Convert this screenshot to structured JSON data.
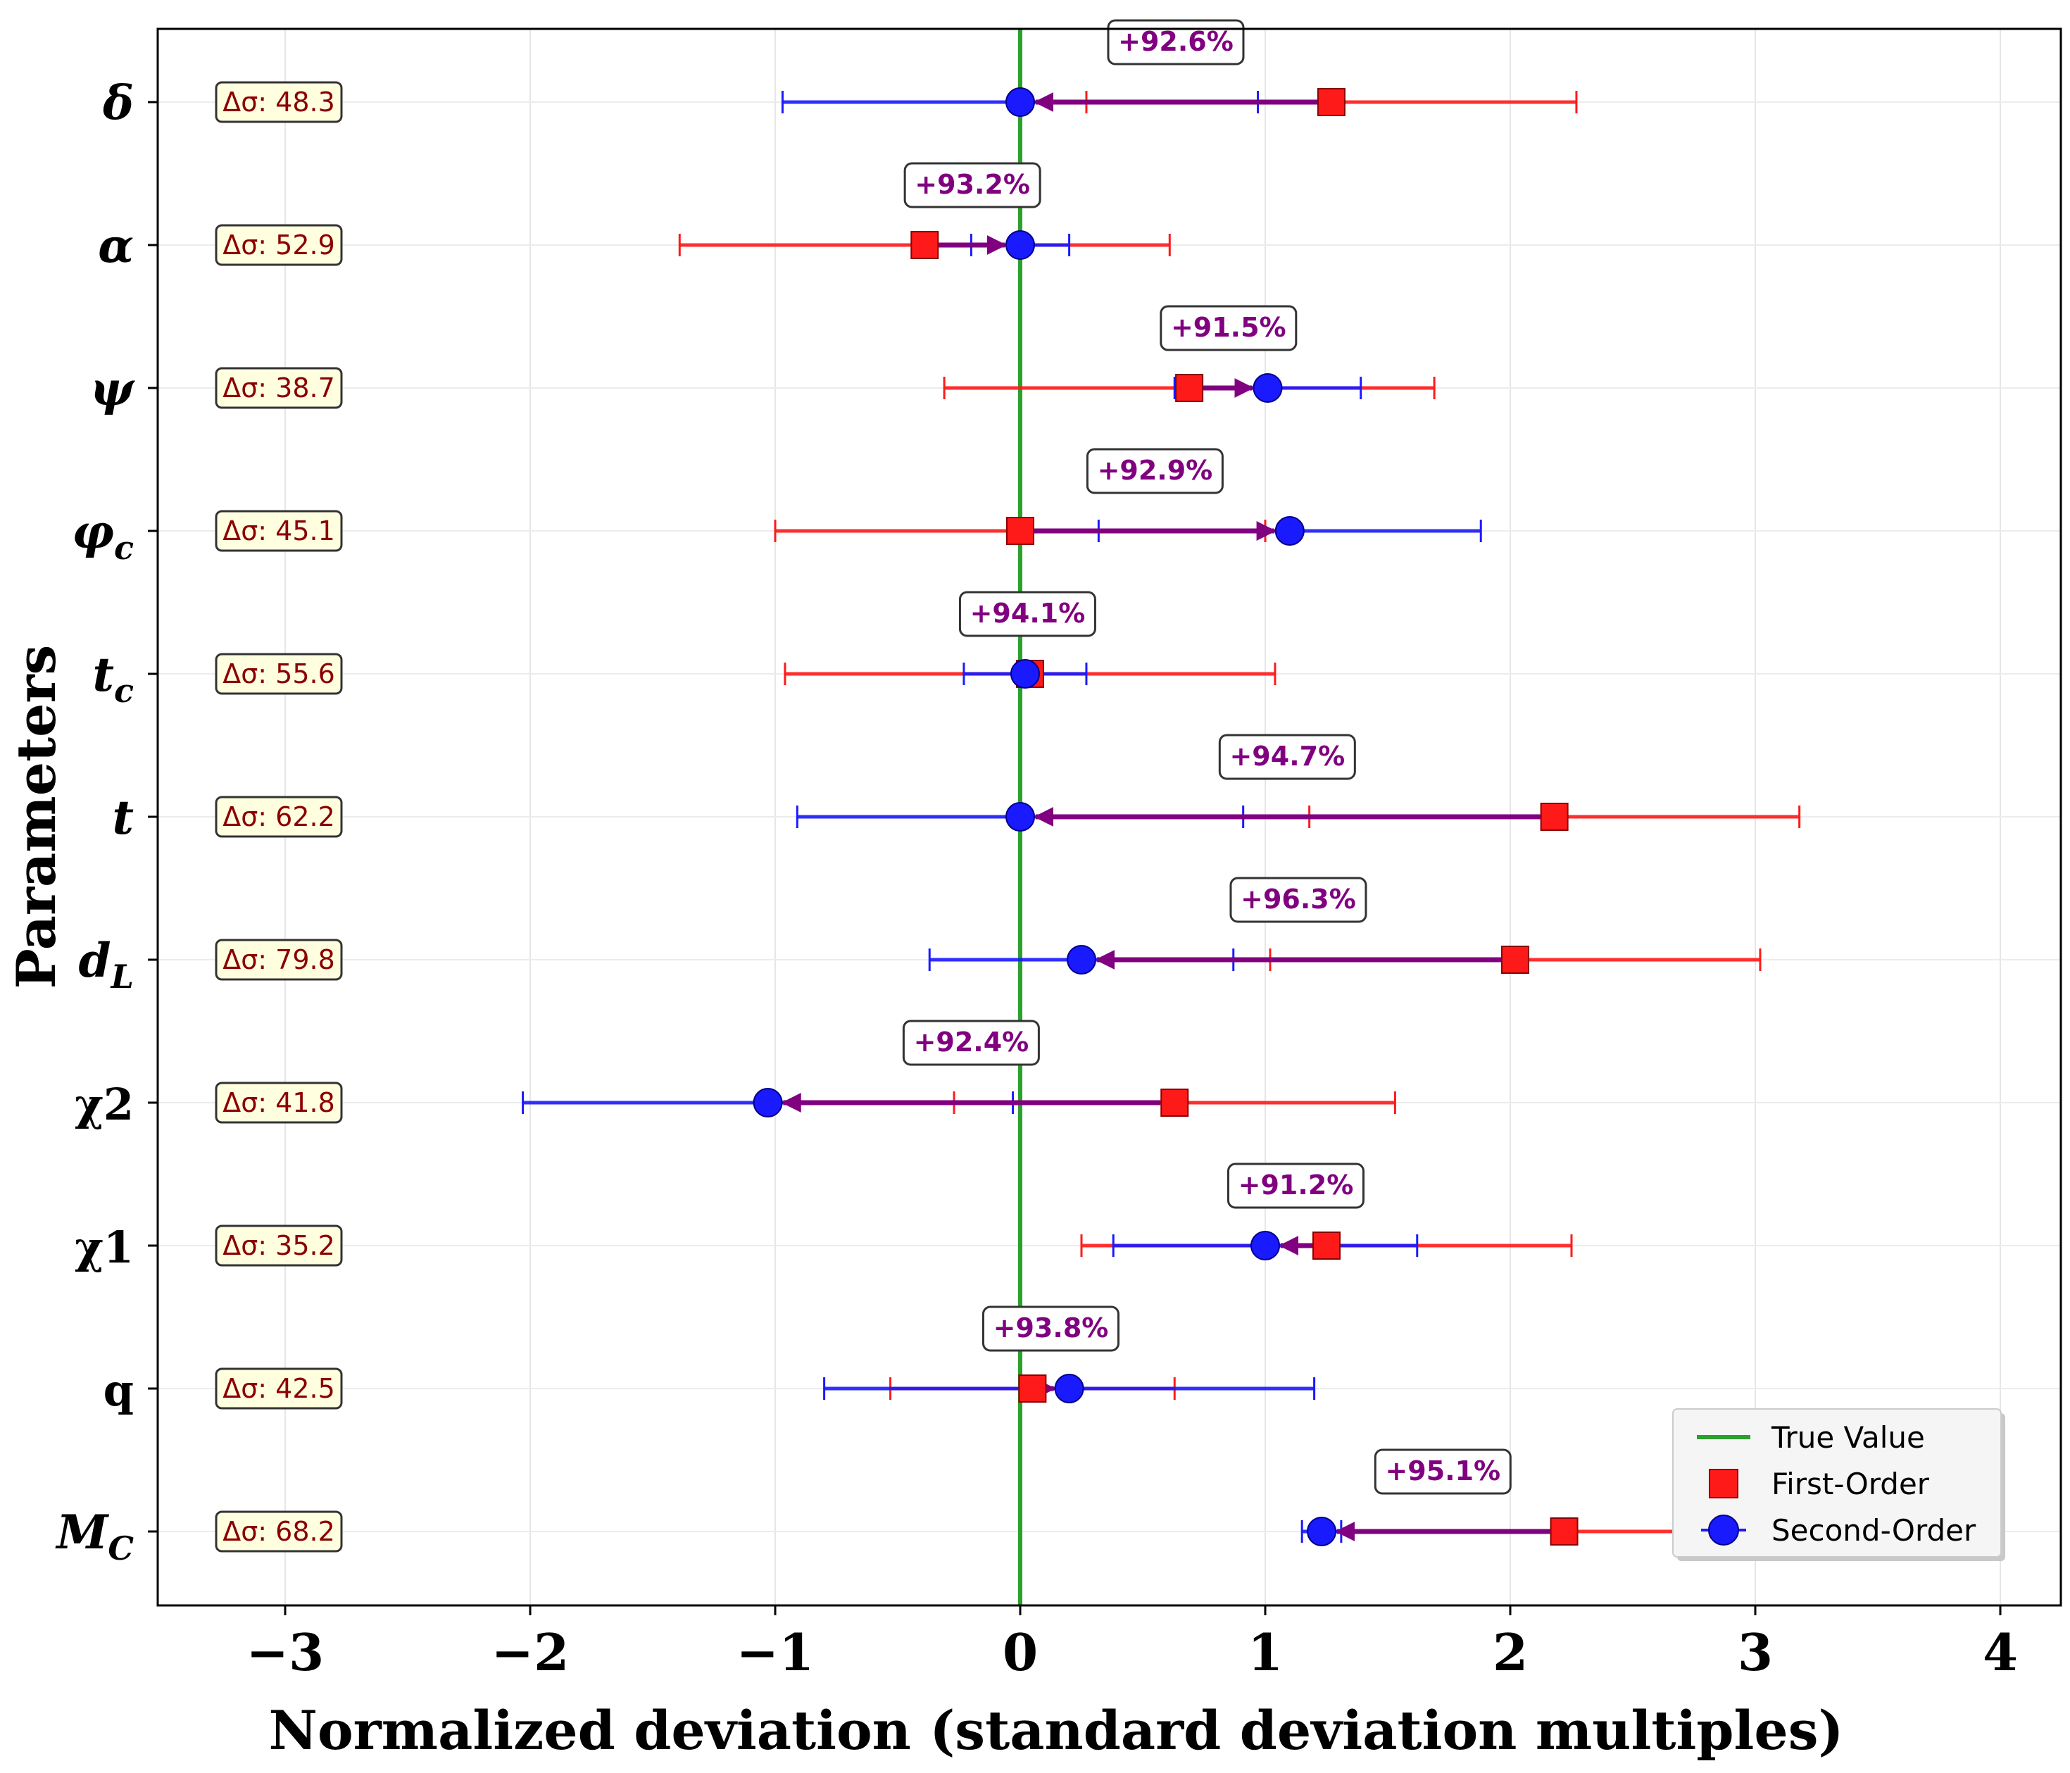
{
  "chart_data": {
    "type": "forest-errorbar",
    "title": "",
    "xlabel": "Normalized deviation (standard deviation multiples)",
    "ylabel": "Parameters",
    "xlim": [
      -3.5,
      4.25
    ],
    "xticks": [
      -3,
      -2,
      -1,
      0,
      1,
      2,
      3,
      4
    ],
    "xtick_labels": [
      "−3",
      "−2",
      "−1",
      "0",
      "1",
      "2",
      "3",
      "4"
    ],
    "grid": true,
    "true_value": 0,
    "colors": {
      "first_order": "#ff1a1a",
      "second_order": "#1a1aff",
      "true_value": "#2ca02c",
      "arrow": "#800080",
      "delta_box_fill": "#ffffe0",
      "delta_text": "#8b0000"
    },
    "legend": {
      "position": "bottom-right",
      "entries": [
        {
          "label": "True Value",
          "marker": "line"
        },
        {
          "label": "First-Order",
          "marker": "square"
        },
        {
          "label": "Second-Order",
          "marker": "circle"
        }
      ]
    },
    "parameters": [
      {
        "label": "δ",
        "sub": "",
        "italic": true,
        "first": 1.27,
        "first_err": 1.0,
        "second": 0.0,
        "second_err": 0.97,
        "improvement": "+92.6%",
        "delta_sigma": "Δσ: 48.3"
      },
      {
        "label": "α",
        "sub": "",
        "italic": true,
        "first": -0.39,
        "first_err": 1.0,
        "second": 0.0,
        "second_err": 0.2,
        "improvement": "+93.2%",
        "delta_sigma": "Δσ: 52.9"
      },
      {
        "label": "ψ",
        "sub": "",
        "italic": true,
        "first": 0.69,
        "first_err": 1.0,
        "second": 1.01,
        "second_err": 0.38,
        "improvement": "+91.5%",
        "delta_sigma": "Δσ: 38.7"
      },
      {
        "label": "φ",
        "sub": "c",
        "italic": true,
        "first": 0.0,
        "first_err": 1.0,
        "second": 1.1,
        "second_err": 0.78,
        "improvement": "+92.9%",
        "delta_sigma": "Δσ: 45.1"
      },
      {
        "label": "t",
        "sub": "c",
        "italic": true,
        "first": 0.04,
        "first_err": 1.0,
        "second": 0.02,
        "second_err": 0.25,
        "improvement": "+94.1%",
        "delta_sigma": "Δσ: 55.6"
      },
      {
        "label": "t",
        "sub": "",
        "italic": true,
        "first": 2.18,
        "first_err": 1.0,
        "second": 0.0,
        "second_err": 0.91,
        "improvement": "+94.7%",
        "delta_sigma": "Δσ: 62.2"
      },
      {
        "label": "d",
        "sub": "L",
        "italic": true,
        "first": 2.02,
        "first_err": 1.0,
        "second": 0.25,
        "second_err": 0.62,
        "improvement": "+96.3%",
        "delta_sigma": "Δσ: 79.8"
      },
      {
        "label": "χ2",
        "sub": "",
        "italic": false,
        "first": 0.63,
        "first_err": 0.9,
        "second": -1.03,
        "second_err": 1.0,
        "improvement": "+92.4%",
        "delta_sigma": "Δσ: 41.8"
      },
      {
        "label": "χ1",
        "sub": "",
        "italic": false,
        "first": 1.25,
        "first_err": 1.0,
        "second": 1.0,
        "second_err": 0.62,
        "improvement": "+91.2%",
        "delta_sigma": "Δσ: 35.2"
      },
      {
        "label": "q",
        "sub": "",
        "italic": false,
        "first": 0.05,
        "first_err": 0.58,
        "second": 0.2,
        "second_err": 1.0,
        "improvement": "+93.8%",
        "delta_sigma": "Δσ: 42.5"
      },
      {
        "label": "M",
        "sub": "C",
        "italic": true,
        "first": 2.22,
        "first_err": 1.0,
        "second": 1.23,
        "second_err": 0.08,
        "improvement": "+95.1%",
        "delta_sigma": "Δσ: 68.2"
      }
    ]
  }
}
